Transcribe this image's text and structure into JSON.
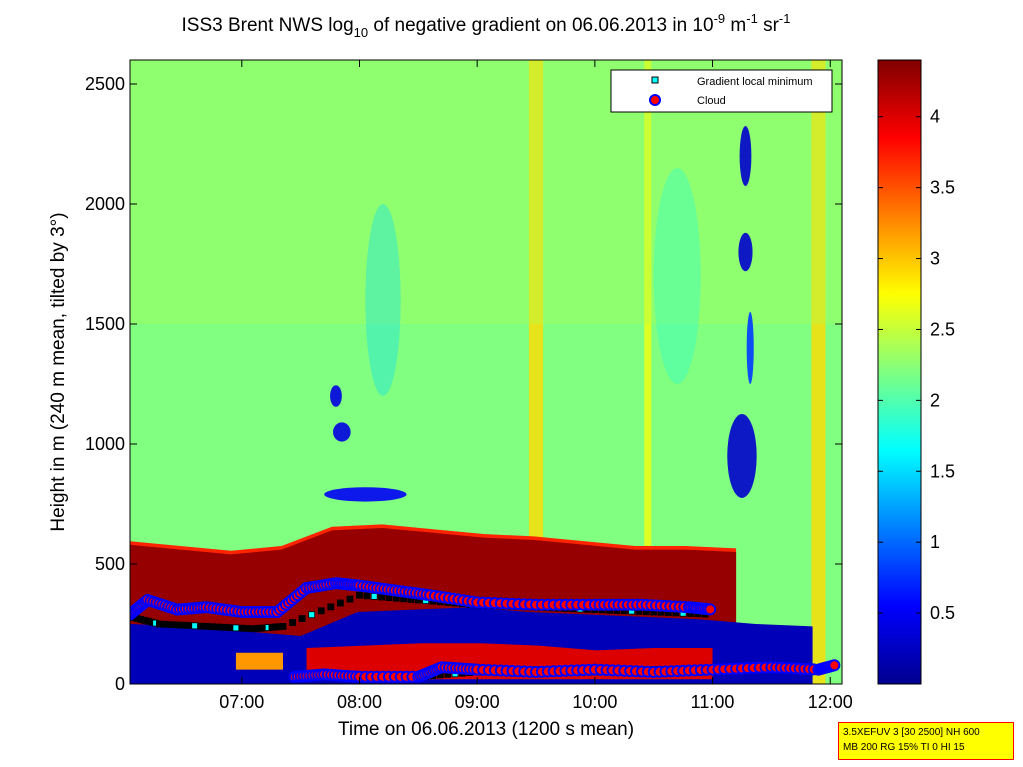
{
  "chart_data": {
    "type": "heatmap",
    "title": {
      "prefix": "ISS3 Brent NWS log",
      "log_base": "10",
      "middle": " of negative gradient on 06.06.2013 in 10",
      "exp1": "-9",
      "unit1": " m",
      "exp2": "-1",
      "unit2": " sr",
      "exp3": "-1"
    },
    "xlabel": "Time on 06.06.2013 (1200 s mean)",
    "ylabel": "Height in m (240 m mean, tilted by 3°)",
    "x_range_hours": [
      6.05,
      12.1
    ],
    "y_range_m": [
      0,
      2600
    ],
    "x_ticks": [
      {
        "value": 7,
        "label": "07:00"
      },
      {
        "value": 8,
        "label": "08:00"
      },
      {
        "value": 9,
        "label": "09:00"
      },
      {
        "value": 10,
        "label": "10:00"
      },
      {
        "value": 11,
        "label": "11:00"
      },
      {
        "value": 12,
        "label": "12:00"
      }
    ],
    "y_ticks": [
      {
        "value": 0,
        "label": "0"
      },
      {
        "value": 500,
        "label": "500"
      },
      {
        "value": 1000,
        "label": "1000"
      },
      {
        "value": 1500,
        "label": "1500"
      },
      {
        "value": 2000,
        "label": "2000"
      },
      {
        "value": 2500,
        "label": "2500"
      }
    ],
    "colorbar": {
      "range": [
        0,
        4.4
      ],
      "ticks": [
        {
          "value": 0.5,
          "label": "0.5"
        },
        {
          "value": 1,
          "label": "1"
        },
        {
          "value": 1.5,
          "label": "1.5"
        },
        {
          "value": 2,
          "label": "2"
        },
        {
          "value": 2.5,
          "label": "2.5"
        },
        {
          "value": 3,
          "label": "3"
        },
        {
          "value": 3.5,
          "label": "3.5"
        },
        {
          "value": 4,
          "label": "4"
        }
      ]
    },
    "legend": {
      "placement": "top-right",
      "entries": [
        {
          "label": "Gradient local minimum",
          "marker": "square",
          "color": "#00ffff"
        },
        {
          "label": "Cloud",
          "marker": "circle",
          "color": "#ff0000"
        }
      ]
    },
    "background_level": 2.2,
    "top_band_level": 2.4,
    "layers": [
      {
        "name": "lower-blue-layer",
        "t0": 6.05,
        "t1": 11.85,
        "h0": 0,
        "hs": [
          250,
          240,
          220,
          200,
          300,
          310,
          320,
          300,
          290,
          280,
          270,
          250,
          240
        ],
        "level": 0.2
      },
      {
        "name": "dark-red-inversion",
        "t0": 6.05,
        "t1": 11.2,
        "hs": [
          580,
          560,
          540,
          560,
          640,
          650,
          630,
          610,
          600,
          580,
          560,
          560,
          550
        ],
        "level": 4.3
      },
      {
        "name": "red-bottom-band",
        "t0": 7.55,
        "t1": 11.0,
        "h0": 20,
        "hs": [
          150,
          160,
          170,
          170,
          160,
          140,
          150,
          150
        ],
        "level": 4.0
      },
      {
        "name": "orange-patch-0705",
        "t0": 6.95,
        "t1": 7.35,
        "h0": 60,
        "hs": [
          130,
          130
        ],
        "level": 3.2
      }
    ],
    "low_value_patches": [
      {
        "t": 7.85,
        "h": 1050,
        "w": 0.15,
        "hh": 80,
        "level": 0.4
      },
      {
        "t": 7.8,
        "h": 1200,
        "w": 0.1,
        "hh": 90,
        "level": 0.4
      },
      {
        "t": 8.05,
        "h": 790,
        "w": 0.7,
        "hh": 60,
        "level": 0.5
      },
      {
        "t": 11.25,
        "h": 950,
        "w": 0.25,
        "hh": 350,
        "level": 0.3
      },
      {
        "t": 11.28,
        "h": 2200,
        "w": 0.1,
        "hh": 250,
        "level": 0.3
      },
      {
        "t": 11.28,
        "h": 1800,
        "w": 0.12,
        "hh": 160,
        "level": 0.3
      },
      {
        "t": 11.32,
        "h": 1400,
        "w": 0.06,
        "hh": 300,
        "level": 0.8
      },
      {
        "t": 8.2,
        "h": 1600,
        "w": 0.3,
        "hh": 800,
        "level": 1.5
      },
      {
        "t": 10.7,
        "h": 1700,
        "w": 0.4,
        "hh": 900,
        "level": 1.8
      }
    ],
    "high_value_stripes": [
      {
        "t": 9.5,
        "w": 0.12,
        "level": 2.9
      },
      {
        "t": 11.9,
        "w": 0.12,
        "level": 2.9
      },
      {
        "t": 10.45,
        "w": 0.06,
        "level": 2.7
      }
    ],
    "cloud_tracks": [
      {
        "name": "upper-cloud-track",
        "t": [
          6.05,
          6.2,
          6.45,
          6.7,
          7.0,
          7.3,
          7.55,
          7.8,
          8.0,
          8.3,
          8.6,
          9.0,
          9.5,
          10.0,
          10.4,
          10.8,
          11.0
        ],
        "h": [
          290,
          350,
          310,
          320,
          300,
          300,
          400,
          420,
          410,
          390,
          370,
          340,
          330,
          330,
          330,
          320,
          310
        ]
      },
      {
        "name": "lower-cloud-track",
        "t": [
          7.45,
          7.7,
          8.0,
          8.5,
          8.7,
          9.0,
          9.5,
          10.0,
          10.5,
          11.0,
          11.5,
          11.9,
          12.05
        ],
        "h": [
          30,
          40,
          30,
          30,
          70,
          60,
          50,
          60,
          50,
          60,
          70,
          60,
          80
        ]
      }
    ],
    "gradient_minimum_tracks": [
      {
        "name": "upper-minimum-track",
        "t": [
          6.05,
          6.3,
          6.7,
          7.1,
          7.35,
          8.0,
          8.5,
          9.0,
          9.5,
          10.0,
          10.5,
          11.0
        ],
        "h": [
          280,
          250,
          240,
          230,
          240,
          370,
          350,
          330,
          320,
          310,
          300,
          290
        ]
      },
      {
        "name": "lower-minimum-track",
        "t": [
          7.5,
          8.0,
          8.5,
          9.0,
          9.5,
          10.0,
          10.5,
          11.0,
          11.5,
          12.0
        ],
        "h": [
          30,
          30,
          30,
          50,
          60,
          50,
          60,
          60,
          70,
          60
        ]
      }
    ],
    "annotation": {
      "line1": "3.5XEFUV 3 [30 2500] NH 600",
      "line2": "MB 200 RG 15% TI 0 HI 15"
    }
  }
}
